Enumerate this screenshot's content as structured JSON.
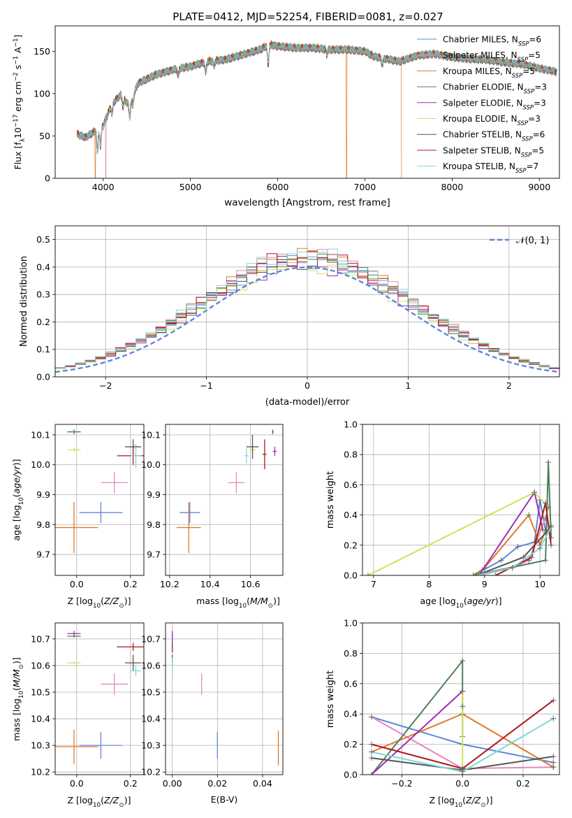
{
  "figure": {
    "title": "PLATE=0412, MJD=52254, FIBERID=0081, z=0.027"
  },
  "colors": {
    "chabrier_miles": "#5f87d9",
    "salpeter_miles": "#e687bd",
    "kroupa_miles": "#e07b2a",
    "chabrier_elodie": "#4e7f5c",
    "salpeter_elodie": "#9a2fb8",
    "kroupa_elodie": "#cfe25b",
    "chabrier_stelib": "#555555",
    "salpeter_stelib": "#aa1a1a",
    "kroupa_stelib": "#7fd8d8",
    "gaussian": "#5f87d9",
    "grid": "#b0b0b0"
  },
  "chart_data": [
    {
      "id": "spectrum",
      "type": "line",
      "xlabel": "wavelength [Angstrom, rest frame]",
      "ylabel": "Flux [f_λ 10^-17 erg cm^-2 s^-1 A^-1]",
      "xlim": [
        3450,
        9230
      ],
      "ylim": [
        0,
        180
      ],
      "xticks": [
        4000,
        5000,
        6000,
        7000,
        8000,
        9000
      ],
      "yticks": [
        0,
        50,
        100,
        150
      ],
      "grid": false,
      "legend_position": "top-right",
      "legend": [
        {
          "model": "Chabrier MILES",
          "nssp": "6"
        },
        {
          "model": "Salpeter MILES",
          "nssp": "5"
        },
        {
          "model": "Kroupa MILES",
          "nssp": "5"
        },
        {
          "model": "Chabrier ELODIE",
          "nssp": "3"
        },
        {
          "model": "Salpeter ELODIE",
          "nssp": "3"
        },
        {
          "model": "Kroupa ELODIE",
          "nssp": "3"
        },
        {
          "model": "Chabrier STELIB",
          "nssp": "6"
        },
        {
          "model": "Salpeter STELIB",
          "nssp": "5"
        },
        {
          "model": "Kroupa STELIB",
          "nssp": "7"
        }
      ],
      "continuum": [
        [
          3700,
          52
        ],
        [
          3800,
          48
        ],
        [
          3900,
          55
        ],
        [
          4000,
          62
        ],
        [
          4100,
          88
        ],
        [
          4200,
          98
        ],
        [
          4300,
          86
        ],
        [
          4400,
          112
        ],
        [
          4600,
          122
        ],
        [
          4800,
          128
        ],
        [
          5000,
          132
        ],
        [
          5200,
          138
        ],
        [
          5400,
          140
        ],
        [
          5600,
          146
        ],
        [
          5800,
          152
        ],
        [
          5900,
          158
        ],
        [
          6000,
          156
        ],
        [
          6200,
          154
        ],
        [
          6400,
          154
        ],
        [
          6600,
          152
        ],
        [
          6800,
          152
        ],
        [
          7000,
          150
        ],
        [
          7100,
          144
        ],
        [
          7200,
          142
        ],
        [
          7400,
          138
        ],
        [
          7600,
          145
        ],
        [
          7800,
          147
        ],
        [
          8000,
          143
        ],
        [
          8200,
          141
        ],
        [
          8400,
          140
        ],
        [
          8600,
          137
        ],
        [
          8800,
          135
        ],
        [
          9000,
          130
        ],
        [
          9200,
          126
        ]
      ],
      "absorption_features": [
        {
          "center": 3934,
          "depth": 25
        },
        {
          "center": 3969,
          "depth": 22
        },
        {
          "center": 4102,
          "depth": 12
        },
        {
          "center": 4227,
          "depth": 10
        },
        {
          "center": 4305,
          "depth": 14
        },
        {
          "center": 4341,
          "depth": 10
        },
        {
          "center": 4861,
          "depth": 8
        },
        {
          "center": 5175,
          "depth": 12
        },
        {
          "center": 5270,
          "depth": 6
        },
        {
          "center": 5892,
          "depth": 24
        },
        {
          "center": 6563,
          "depth": 6
        },
        {
          "center": 7200,
          "depth": 8
        }
      ],
      "dropouts": [
        {
          "wavelength": 3910,
          "series": "kroupa_miles"
        },
        {
          "wavelength": 4030,
          "series": "salpeter_miles"
        },
        {
          "wavelength": 6790,
          "series": "kroupa_miles"
        },
        {
          "wavelength": 7420,
          "series": "kroupa_miles"
        }
      ],
      "spectrum_end": 9200
    },
    {
      "id": "residuals",
      "type": "step",
      "xlabel": "(data-model)/error",
      "ylabel": "Normed distribution",
      "xlim": [
        -2.5,
        2.5
      ],
      "ylim": [
        0,
        0.55
      ],
      "xticks": [
        -2,
        -1,
        0,
        1,
        2
      ],
      "yticks": [
        0.0,
        0.1,
        0.2,
        0.3,
        0.4,
        0.5
      ],
      "grid": true,
      "legend_position": "top-right",
      "legend": "𝒩(0, 1)",
      "bins": {
        "start": -2.5,
        "width": 0.1,
        "count": 50
      },
      "gaussian": {
        "mu": 0,
        "sigma": 1
      }
    },
    {
      "id": "age_vs_Z",
      "type": "errorbar",
      "xlabel": "Z [log10(Z/Z⊙)]",
      "ylabel": "age [log10(age/yr)]",
      "xlim": [
        -0.08,
        0.25
      ],
      "ylim": [
        9.63,
        10.135
      ],
      "xticks": [
        0.0,
        0.2
      ],
      "yticks": [
        9.7,
        9.8,
        9.9,
        10.0,
        10.1
      ],
      "grid": true,
      "points": [
        {
          "series": "chabrier_miles",
          "x": 0.09,
          "xerr": 0.08,
          "y": 9.84,
          "yerr": 0.035
        },
        {
          "series": "salpeter_miles",
          "x": 0.14,
          "xerr": 0.05,
          "y": 9.94,
          "yerr": 0.035
        },
        {
          "series": "kroupa_miles",
          "x": -0.01,
          "xerr": 0.09,
          "y": 9.79,
          "yerr": 0.085
        },
        {
          "series": "chabrier_elodie",
          "x": -0.01,
          "xerr": 0.025,
          "y": 10.11,
          "yerr": 0.008
        },
        {
          "series": "salpeter_elodie",
          "x": 0.22,
          "xerr": 0.01,
          "y": 10.06,
          "yerr": 0.008
        },
        {
          "series": "kroupa_elodie",
          "x": -0.01,
          "xerr": 0.025,
          "y": 10.05,
          "yerr": 0.006
        },
        {
          "series": "chabrier_stelib",
          "x": 0.21,
          "xerr": 0.03,
          "y": 10.06,
          "yerr": 0.025
        },
        {
          "series": "salpeter_stelib",
          "x": 0.21,
          "xerr": 0.06,
          "y": 10.03,
          "yerr": 0.03
        },
        {
          "series": "kroupa_stelib",
          "x": 0.22,
          "xerr": 0.02,
          "y": 10.03,
          "yerr": 0.04
        }
      ]
    },
    {
      "id": "age_vs_mass",
      "type": "errorbar",
      "xlabel": "mass [log10(M/M⊙)]",
      "ylabel": "",
      "xlim": [
        10.18,
        10.76
      ],
      "ylim": [
        9.63,
        10.135
      ],
      "xticks": [
        10.2,
        10.4,
        10.6
      ],
      "yticks": [
        9.7,
        9.8,
        9.9,
        10.0,
        10.1
      ],
      "grid": true,
      "points": [
        {
          "series": "chabrier_miles",
          "x": 10.3,
          "xerr": 0.05,
          "y": 9.84,
          "yerr": 0.035
        },
        {
          "series": "salpeter_miles",
          "x": 10.53,
          "xerr": 0.04,
          "y": 9.94,
          "yerr": 0.035
        },
        {
          "series": "kroupa_miles",
          "x": 10.295,
          "xerr": 0.06,
          "y": 9.79,
          "yerr": 0.085
        },
        {
          "series": "chabrier_elodie",
          "x": 10.71,
          "xerr": 0.005,
          "y": 10.11,
          "yerr": 0.008
        },
        {
          "series": "salpeter_elodie",
          "x": 10.72,
          "xerr": 0.01,
          "y": 10.045,
          "yerr": 0.015
        },
        {
          "series": "kroupa_elodie",
          "x": 10.61,
          "xerr": 0.015,
          "y": 10.05,
          "yerr": 0.01
        },
        {
          "series": "chabrier_stelib",
          "x": 10.61,
          "xerr": 0.03,
          "y": 10.06,
          "yerr": 0.04
        },
        {
          "series": "salpeter_stelib",
          "x": 10.67,
          "xerr": 0.01,
          "y": 10.035,
          "yerr": 0.05
        },
        {
          "series": "kroupa_stelib",
          "x": 10.58,
          "xerr": 0.01,
          "y": 10.03,
          "yerr": 0.025
        }
      ]
    },
    {
      "id": "weight_vs_age",
      "type": "line",
      "xlabel": "age [log10(age/yr)]",
      "ylabel": "mass weight",
      "xlim": [
        6.8,
        10.35
      ],
      "ylim": [
        0.0,
        1.0
      ],
      "xticks": [
        7,
        8,
        9,
        10
      ],
      "yticks": [
        0.0,
        0.2,
        0.4,
        0.6,
        0.8,
        1.0
      ],
      "grid": true,
      "series": [
        {
          "name": "chabrier_miles",
          "x": [
            8.8,
            9.3,
            9.6,
            9.9,
            10.0,
            10.1
          ],
          "y": [
            0.0,
            0.1,
            0.19,
            0.22,
            0.5,
            0.3
          ]
        },
        {
          "name": "salpeter_miles",
          "x": [
            8.9,
            9.5,
            9.8,
            10.1
          ],
          "y": [
            0.0,
            0.05,
            0.1,
            0.38
          ]
        },
        {
          "name": "kroupa_miles",
          "x": [
            8.8,
            9.0,
            9.8,
            10.0,
            10.1
          ],
          "y": [
            0.0,
            0.05,
            0.4,
            0.2,
            0.3
          ]
        },
        {
          "name": "chabrier_elodie",
          "x": [
            8.8,
            10.1,
            10.15,
            10.2
          ],
          "y": [
            0.0,
            0.1,
            0.75,
            0.25
          ]
        },
        {
          "name": "salpeter_elodie",
          "x": [
            8.9,
            9.9,
            10.05
          ],
          "y": [
            0.0,
            0.55,
            0.3
          ]
        },
        {
          "name": "kroupa_elodie",
          "x": [
            6.9,
            9.9,
            10.15
          ],
          "y": [
            0.0,
            0.55,
            0.45
          ]
        },
        {
          "name": "chabrier_stelib",
          "x": [
            8.85,
            9.7,
            10.15,
            10.2
          ],
          "y": [
            0.0,
            0.12,
            0.3,
            0.33
          ]
        },
        {
          "name": "salpeter_stelib",
          "x": [
            9.2,
            9.85,
            10.1,
            10.2
          ],
          "y": [
            0.0,
            0.12,
            0.48,
            0.2
          ]
        },
        {
          "name": "kroupa_stelib",
          "x": [
            8.85,
            9.5,
            10.0,
            10.2
          ],
          "y": [
            0.0,
            0.05,
            0.18,
            0.32
          ]
        }
      ]
    },
    {
      "id": "mass_vs_Z",
      "type": "errorbar",
      "xlabel": "Z [log10(Z/Z⊙)]",
      "ylabel": "mass [log10(M/M⊙)]",
      "xlim": [
        -0.08,
        0.25
      ],
      "ylim": [
        10.19,
        10.76
      ],
      "xticks": [
        0.0,
        0.2
      ],
      "yticks": [
        10.2,
        10.3,
        10.4,
        10.5,
        10.6,
        10.7
      ],
      "grid": true,
      "points": [
        {
          "series": "chabrier_miles",
          "x": 0.09,
          "xerr": 0.08,
          "y": 10.3,
          "yerr": 0.05
        },
        {
          "series": "salpeter_miles",
          "x": 0.14,
          "xerr": 0.05,
          "y": 10.53,
          "yerr": 0.04
        },
        {
          "series": "kroupa_miles",
          "x": -0.01,
          "xerr": 0.09,
          "y": 10.295,
          "yerr": 0.065
        },
        {
          "series": "chabrier_elodie",
          "x": -0.01,
          "xerr": 0.025,
          "y": 10.71,
          "yerr": 0.005
        },
        {
          "series": "salpeter_elodie",
          "x": -0.01,
          "xerr": 0.025,
          "y": 10.72,
          "yerr": 0.01
        },
        {
          "series": "kroupa_elodie",
          "x": -0.01,
          "xerr": 0.025,
          "y": 10.61,
          "yerr": 0.005
        },
        {
          "series": "chabrier_stelib",
          "x": 0.21,
          "xerr": 0.03,
          "y": 10.61,
          "yerr": 0.03
        },
        {
          "series": "salpeter_stelib",
          "x": 0.21,
          "xerr": 0.06,
          "y": 10.67,
          "yerr": 0.015
        },
        {
          "series": "kroupa_stelib",
          "x": 0.22,
          "xerr": 0.02,
          "y": 10.58,
          "yerr": 0.02
        }
      ]
    },
    {
      "id": "mass_vs_ebv",
      "type": "errorbar",
      "xlabel": "E(B-V)",
      "ylabel": "",
      "xlim": [
        -0.003,
        0.049
      ],
      "ylim": [
        10.19,
        10.76
      ],
      "xticks": [
        0.0,
        0.02,
        0.04
      ],
      "yticks": [
        10.2,
        10.3,
        10.4,
        10.5,
        10.6,
        10.7
      ],
      "grid": true,
      "points": [
        {
          "series": "chabrier_miles",
          "x": 0.02,
          "xerr": 0.0,
          "y": 10.3,
          "yerr": 0.05
        },
        {
          "series": "salpeter_miles",
          "x": 0.013,
          "xerr": 0.0,
          "y": 10.53,
          "yerr": 0.04
        },
        {
          "series": "kroupa_miles",
          "x": 0.047,
          "xerr": 0.0,
          "y": 10.29,
          "yerr": 0.065
        },
        {
          "series": "chabrier_elodie",
          "x": 0.0,
          "xerr": 0.0,
          "y": 10.71,
          "yerr": 0.005
        },
        {
          "series": "salpeter_elodie",
          "x": 0.0,
          "xerr": 0.0,
          "y": 10.71,
          "yerr": 0.02
        },
        {
          "series": "kroupa_elodie",
          "x": 0.0,
          "xerr": 0.0,
          "y": 10.61,
          "yerr": 0.005
        },
        {
          "series": "chabrier_stelib",
          "x": 0.0,
          "xerr": 0.0,
          "y": 10.62,
          "yerr": 0.02
        },
        {
          "series": "salpeter_stelib",
          "x": 0.0,
          "xerr": 0.0,
          "y": 10.67,
          "yerr": 0.02
        },
        {
          "series": "kroupa_stelib",
          "x": 0.0,
          "xerr": 0.0,
          "y": 10.6,
          "yerr": 0.03
        }
      ]
    },
    {
      "id": "weight_vs_Z",
      "type": "line",
      "xlabel": "Z [log10(Z/Z⊙)]",
      "ylabel": "mass weight",
      "xlim": [
        -0.33,
        0.32
      ],
      "ylim": [
        0.0,
        1.0
      ],
      "xticks": [
        -0.2,
        0.0,
        0.2
      ],
      "yticks": [
        0.0,
        0.2,
        0.4,
        0.6,
        0.8,
        1.0
      ],
      "grid": true,
      "series": [
        {
          "name": "chabrier_miles",
          "x": [
            -0.3,
            0.0,
            0.3
          ],
          "y": [
            0.38,
            0.2,
            0.08
          ]
        },
        {
          "name": "salpeter_miles",
          "x": [
            -0.3,
            0.0,
            0.3
          ],
          "y": [
            0.38,
            0.04,
            0.05
          ]
        },
        {
          "name": "kroupa_miles",
          "x": [
            -0.3,
            0.0,
            0.3
          ],
          "y": [
            0.15,
            0.4,
            0.05
          ]
        },
        {
          "name": "chabrier_elodie",
          "x": [
            -0.3,
            0.0,
            0.0
          ],
          "y": [
            0.0,
            0.75,
            0.25
          ]
        },
        {
          "name": "salpeter_elodie",
          "x": [
            -0.3,
            0.0
          ],
          "y": [
            0.0,
            0.55
          ]
        },
        {
          "name": "kroupa_elodie",
          "x": [
            0.0,
            0.0,
            0.0
          ],
          "y": [
            0.55,
            0.45,
            0.0
          ]
        },
        {
          "name": "chabrier_stelib",
          "x": [
            -0.3,
            0.0,
            0.3
          ],
          "y": [
            0.11,
            0.03,
            0.12
          ]
        },
        {
          "name": "salpeter_stelib",
          "x": [
            -0.3,
            0.0,
            0.3
          ],
          "y": [
            0.2,
            0.04,
            0.49
          ]
        },
        {
          "name": "kroupa_stelib",
          "x": [
            -0.3,
            0.0,
            0.3
          ],
          "y": [
            0.15,
            0.02,
            0.37
          ]
        }
      ]
    }
  ]
}
